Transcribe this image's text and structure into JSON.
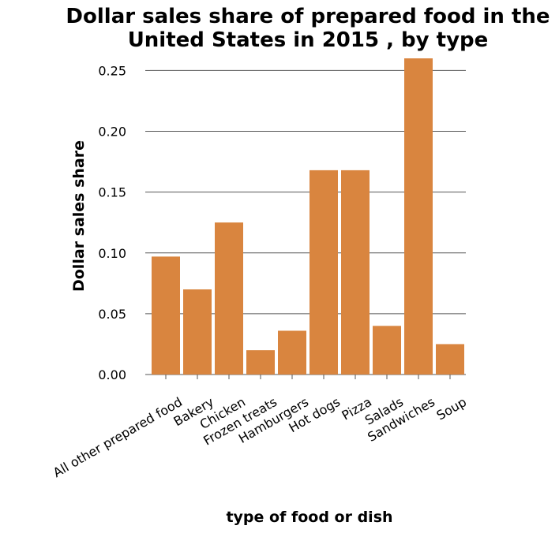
{
  "chart_data": {
    "type": "bar",
    "title_lines": [
      "Dollar sales share of prepared food in the",
      "United States in 2015 , by type"
    ],
    "xlabel": "type of food or dish",
    "ylabel": "Dollar sales share",
    "categories": [
      "All other prepared food",
      "Bakery",
      "Chicken",
      "Frozen treats",
      "Hamburgers",
      "Hot dogs",
      "Pizza",
      "Salads",
      "Sandwiches",
      "Soup"
    ],
    "values": [
      0.097,
      0.07,
      0.125,
      0.02,
      0.036,
      0.168,
      0.168,
      0.04,
      0.26,
      0.025
    ],
    "ylim": [
      0,
      0.26
    ],
    "yticks": [
      "0.00",
      "0.05",
      "0.10",
      "0.15",
      "0.20",
      "0.25"
    ],
    "grid": true,
    "bar_color": "#D9853F",
    "grid_color": "#555555"
  }
}
